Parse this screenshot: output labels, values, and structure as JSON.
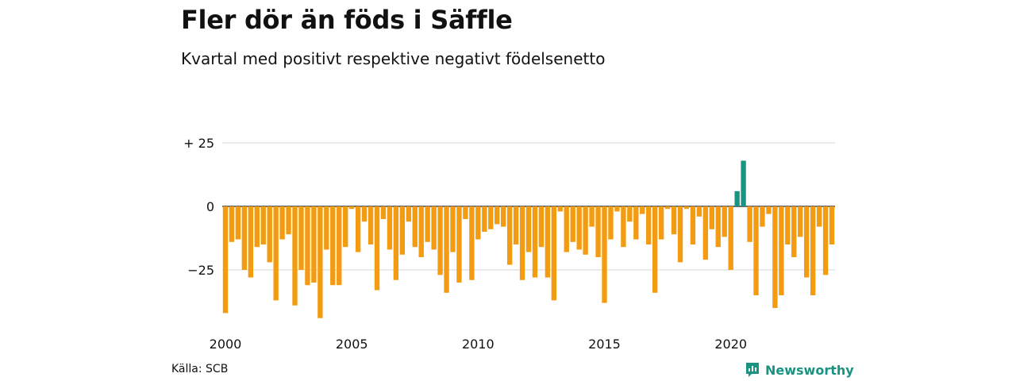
{
  "colors": {
    "positive": "#1a9482",
    "negative": "#f39c12",
    "grid": "#d6d6d6",
    "brand": "#1a9482"
  },
  "brand": {
    "name": "Newsworthy",
    "icon": "newsworthy-logo-icon"
  },
  "source": "Källa: SCB",
  "chart_data": {
    "type": "bar",
    "title": "Fler dör än föds i Säffle",
    "subtitle": "Kvartal med positivt respektive negativt födelsenetto",
    "xlabel": "",
    "ylabel": "",
    "ylim": [
      -45,
      25
    ],
    "y_ticks": [
      {
        "value": 25,
        "label": "+ 25"
      },
      {
        "value": 0,
        "label": "0"
      },
      {
        "value": -25,
        "label": "−25"
      }
    ],
    "x_ticks": [
      "2000",
      "2005",
      "2010",
      "2015",
      "2020"
    ],
    "grid": true,
    "series": [
      {
        "start": "2000Q1",
        "frequency": "quarter",
        "values": [
          -42,
          -14,
          -13,
          -25,
          -28,
          -16,
          -15,
          -22,
          -37,
          -13,
          -11,
          -39,
          -25,
          -31,
          -30,
          -44,
          -17,
          -31,
          -31,
          -16,
          -1,
          -18,
          -6,
          -15,
          -33,
          -5,
          -17,
          -29,
          -19,
          -6,
          -16,
          -20,
          -14,
          -17,
          -27,
          -34,
          -18,
          -30,
          -5,
          -29,
          -13,
          -10,
          -9,
          -7,
          -8,
          -23,
          -15,
          -29,
          -18,
          -28,
          -16,
          -28,
          -37,
          -2,
          -18,
          -14,
          -17,
          -19,
          -8,
          -20,
          -38,
          -13,
          -2,
          -16,
          -6,
          -13,
          -3,
          -15,
          -34,
          -13,
          -1,
          -11,
          -22,
          -1,
          -15,
          -4,
          -21,
          -9,
          -16,
          -12,
          -25,
          6,
          18,
          -14,
          -35,
          -8,
          -3,
          -40,
          -35,
          -15,
          -20,
          -12,
          -28,
          -35,
          -8,
          -27,
          -15
        ]
      }
    ]
  }
}
